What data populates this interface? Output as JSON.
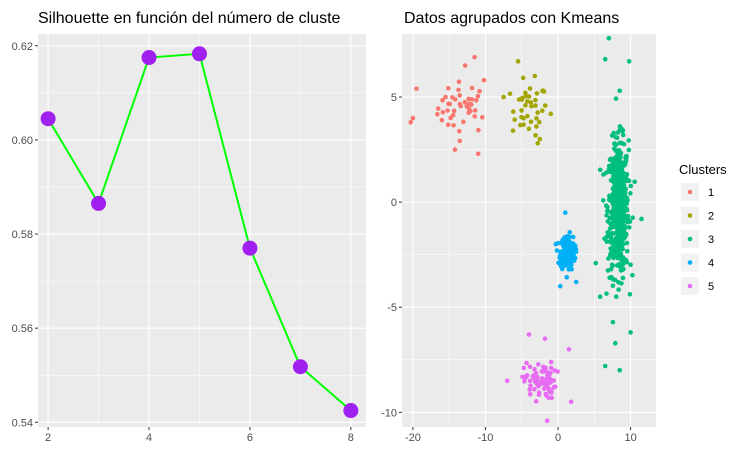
{
  "chart_data": [
    {
      "type": "line",
      "title": "Silhouette en función del número de cluste",
      "xlabel": "",
      "ylabel": "",
      "x": [
        2,
        3,
        4,
        5,
        6,
        7,
        8
      ],
      "y": [
        0.6045,
        0.5865,
        0.6175,
        0.6183,
        0.577,
        0.5518,
        0.5425
      ],
      "xlim": [
        1.8,
        8.3
      ],
      "ylim": [
        0.539,
        0.6225
      ],
      "xticks": [
        2,
        4,
        6,
        8
      ],
      "yticks": [
        0.54,
        0.56,
        0.58,
        0.6,
        0.62
      ],
      "line_color": "#00ff00",
      "point_color": "#a020f0",
      "grid": true
    },
    {
      "type": "scatter",
      "title": "Datos agrupados con Kmeans",
      "xlabel": "",
      "ylabel": "",
      "xlim": [
        -21.5,
        13.5
      ],
      "ylim": [
        -10.7,
        8.0
      ],
      "xticks": [
        -20,
        -10,
        0,
        10
      ],
      "yticks": [
        -10,
        -5,
        0,
        5
      ],
      "legend_title": "Clusters",
      "legend_position": "right",
      "grid": true,
      "series": [
        {
          "name": "1",
          "color": "#F8766D",
          "center": [
            -13.0,
            4.5
          ],
          "spread": [
            3.2,
            1.1
          ],
          "n": 40,
          "points": [
            [
              -20,
              4.0
            ],
            [
              -19.5,
              5.4
            ],
            [
              -20.3,
              3.8
            ],
            [
              -11.5,
              6.9
            ],
            [
              -12.8,
              6.5
            ],
            [
              -10.2,
              5.8
            ],
            [
              -15.5,
              5.0
            ],
            [
              -14.2,
              2.5
            ],
            [
              -11.0,
              2.3
            ],
            [
              -16.0,
              3.9
            ]
          ]
        },
        {
          "name": "2",
          "color": "#A3A500",
          "center": [
            -4.0,
            4.4
          ],
          "spread": [
            2.3,
            1.1
          ],
          "n": 35,
          "points": [
            [
              -5.5,
              6.7
            ],
            [
              -3.2,
              6.0
            ],
            [
              -2.5,
              3.0
            ],
            [
              -1.0,
              4.2
            ],
            [
              -7.5,
              5.0
            ],
            [
              -6.2,
              3.4
            ],
            [
              -2.8,
              2.8
            ],
            [
              -4.5,
              5.2
            ]
          ]
        },
        {
          "name": "3",
          "color": "#00BF7D",
          "center": [
            8.3,
            -0.3
          ],
          "spread": [
            1.3,
            2.9
          ],
          "n": 520,
          "points": [
            [
              7.0,
              7.8
            ],
            [
              6.5,
              6.8
            ],
            [
              9.8,
              6.7
            ],
            [
              8.5,
              5.3
            ],
            [
              6.5,
              -7.8
            ],
            [
              8.5,
              -8.0
            ],
            [
              5.8,
              -4.5
            ],
            [
              10.0,
              -6.2
            ],
            [
              11.5,
              -0.8
            ],
            [
              5.2,
              -2.9
            ]
          ]
        },
        {
          "name": "4",
          "color": "#00B0F6",
          "center": [
            1.3,
            -2.4
          ],
          "spread": [
            0.9,
            0.75
          ],
          "n": 180,
          "points": [
            [
              1.0,
              -0.5
            ],
            [
              0.3,
              -4.0
            ],
            [
              2.5,
              -3.8
            ],
            [
              -0.3,
              -2.0
            ]
          ]
        },
        {
          "name": "5",
          "color": "#E76BF3",
          "center": [
            -2.5,
            -8.5
          ],
          "spread": [
            2.0,
            0.8
          ],
          "n": 75,
          "points": [
            [
              -4.0,
              -6.3
            ],
            [
              -1.8,
              -6.5
            ],
            [
              -7.0,
              -8.5
            ],
            [
              1.5,
              -7.0
            ],
            [
              -1.5,
              -10.4
            ],
            [
              1.8,
              -9.5
            ]
          ]
        }
      ]
    }
  ]
}
